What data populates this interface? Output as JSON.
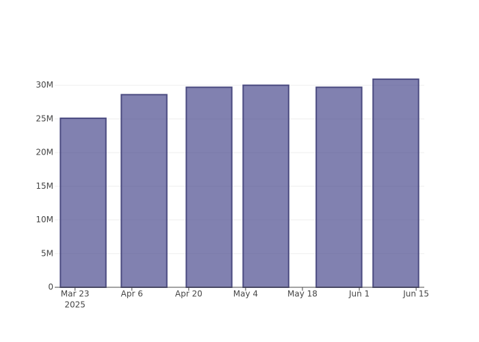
{
  "chart_data": {
    "type": "bar",
    "x": [
      "2025-03-25",
      "2025-04-09",
      "2025-04-25",
      "2025-05-09",
      "2025-05-27",
      "2025-06-10"
    ],
    "values": [
      25100000,
      28600000,
      29700000,
      30000000,
      29700000,
      30900000
    ],
    "color": "#4b4b8f",
    "line_color": "#4a4a80",
    "bar_width_days": 11.2,
    "xlim": [
      "2025-03-18",
      "2025-06-17"
    ],
    "xticks": [
      {
        "value": "2025-03-23",
        "label": "Mar 23",
        "sublabel": "2025"
      },
      {
        "value": "2025-04-06",
        "label": "Apr 6"
      },
      {
        "value": "2025-04-20",
        "label": "Apr 20"
      },
      {
        "value": "2025-05-04",
        "label": "May 4"
      },
      {
        "value": "2025-05-18",
        "label": "May 18"
      },
      {
        "value": "2025-06-01",
        "label": "Jun 1"
      },
      {
        "value": "2025-06-15",
        "label": "Jun 15"
      }
    ],
    "ylim": [
      0,
      32500000
    ],
    "yticks": [
      0,
      {
        "value": 5000000,
        "label": "5M"
      },
      {
        "value": 10000000,
        "label": "10M"
      },
      {
        "value": 15000000,
        "label": "15M"
      },
      {
        "value": 20000000,
        "label": "20M"
      },
      {
        "value": 25000000,
        "label": "25M"
      },
      {
        "value": 30000000,
        "label": "30M"
      }
    ],
    "grid": true
  }
}
